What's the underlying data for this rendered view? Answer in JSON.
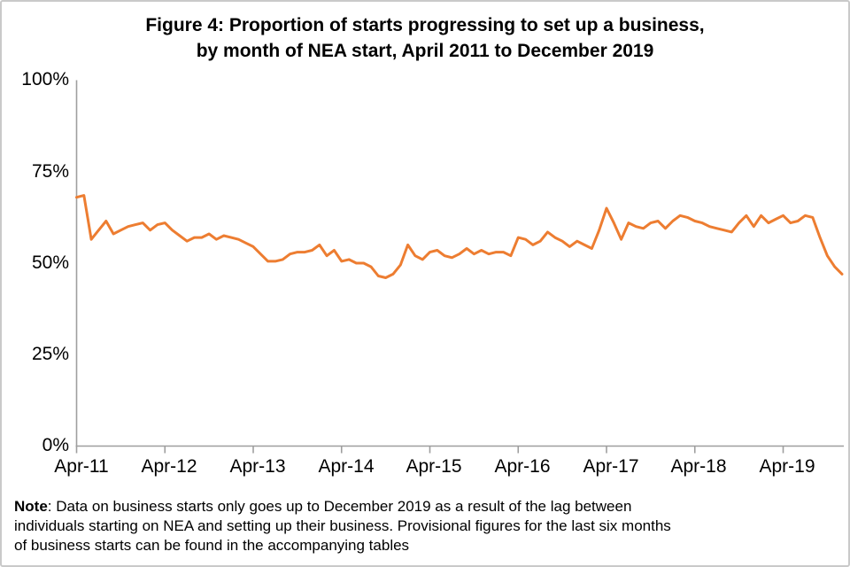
{
  "figure": {
    "title_line1": "Figure 4: Proportion of starts progressing to set up a business,",
    "title_line2": "by month of NEA start, April 2011 to December 2019"
  },
  "chart_data": {
    "type": "line",
    "title": "Figure 4: Proportion of starts progressing to set up a business, by month of NEA start, April 2011 to December 2019",
    "xlabel": "",
    "ylabel": "",
    "ylim": [
      0,
      100
    ],
    "y_ticks_pct": [
      0,
      25,
      50,
      75,
      100
    ],
    "y_tick_labels": [
      "100%",
      "75%",
      "50%",
      "25%",
      "0%"
    ],
    "x_tick_labels": [
      "Apr-11",
      "Apr-12",
      "Apr-13",
      "Apr-14",
      "Apr-15",
      "Apr-16",
      "Apr-17",
      "Apr-18",
      "Apr-19"
    ],
    "x_start": "Apr-2011",
    "x_end": "Dec-2019",
    "x_frequency": "monthly",
    "n_points": 105,
    "grid": "off",
    "legend": "none",
    "axis_color": "#9E9E9E",
    "series": [
      {
        "color": "#ED7D31",
        "values": [
          68,
          68.5,
          56.5,
          59,
          61.5,
          58,
          59,
          60,
          60.5,
          61,
          59,
          60.5,
          61,
          59,
          57.5,
          56,
          57,
          57,
          58,
          56.5,
          57.5,
          57,
          56.5,
          55.5,
          54.5,
          52.5,
          50.5,
          50.5,
          51,
          52.5,
          53,
          53,
          53.5,
          55,
          52,
          53.5,
          50.5,
          51,
          50,
          50,
          49,
          46.5,
          46,
          47,
          49.5,
          55,
          52,
          51,
          53,
          53.5,
          52,
          51.5,
          52.5,
          54,
          52.5,
          53.5,
          52.5,
          53,
          53,
          52,
          57,
          56.5,
          55,
          56,
          58.5,
          57,
          56,
          54.5,
          56,
          55,
          54,
          59,
          65,
          61,
          56.5,
          61,
          60,
          59.5,
          61,
          61.5,
          59.5,
          61.5,
          63,
          62.5,
          61.5,
          61,
          60,
          59.5,
          59,
          58.5,
          61,
          63,
          60,
          63,
          61,
          62,
          63,
          61,
          61.5,
          63,
          62.5,
          57,
          52,
          49,
          47
        ]
      }
    ]
  },
  "note": {
    "label": "Note",
    "line1_rest": ": Data on business starts only goes up to December 2019 as a result of the lag between",
    "line2": "individuals starting on NEA and setting up their business. Provisional figures for the last six months",
    "line3": "of business starts can be found in the accompanying tables"
  }
}
